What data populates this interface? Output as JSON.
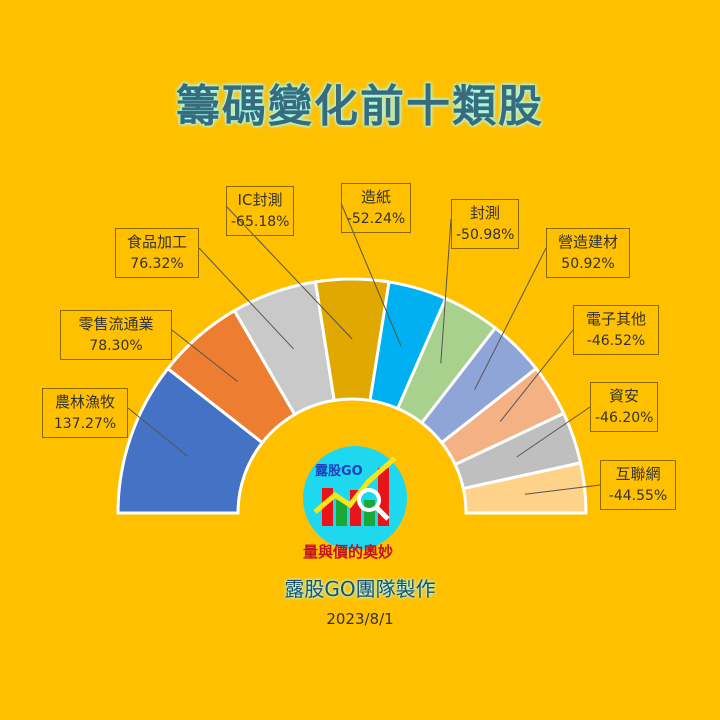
{
  "title": "籌碼變化前十類股",
  "credit": "露股GO團隊製作",
  "date": "2023/8/1",
  "logo": {
    "name": "露股GO",
    "slogan": "量與價的奧妙"
  },
  "chart_data": {
    "type": "pie",
    "variant": "half-donut",
    "title": "籌碼變化前十類股",
    "categories": [
      "農林漁牧",
      "零售流通業",
      "食品加工",
      "IC封測",
      "造紙",
      "封測",
      "營造建材",
      "電子其他",
      "資安",
      "互聯網"
    ],
    "values": [
      137.27,
      78.3,
      76.32,
      -65.18,
      -52.24,
      -50.98,
      50.92,
      -46.52,
      -46.2,
      -44.55
    ],
    "value_labels": [
      "137.27%",
      "78.30%",
      "76.32%",
      "-65.18%",
      "-52.24%",
      "-50.98%",
      "50.92%",
      "-46.52%",
      "-46.20%",
      "-44.55%"
    ],
    "colors": [
      "#4472C4",
      "#ED7D31",
      "#C9C9C9",
      "#E0A800",
      "#00B0F0",
      "#A9D18E",
      "#8FA5D8",
      "#F4B183",
      "#BFBFBF",
      "#FFD28A"
    ],
    "legend": "none"
  }
}
